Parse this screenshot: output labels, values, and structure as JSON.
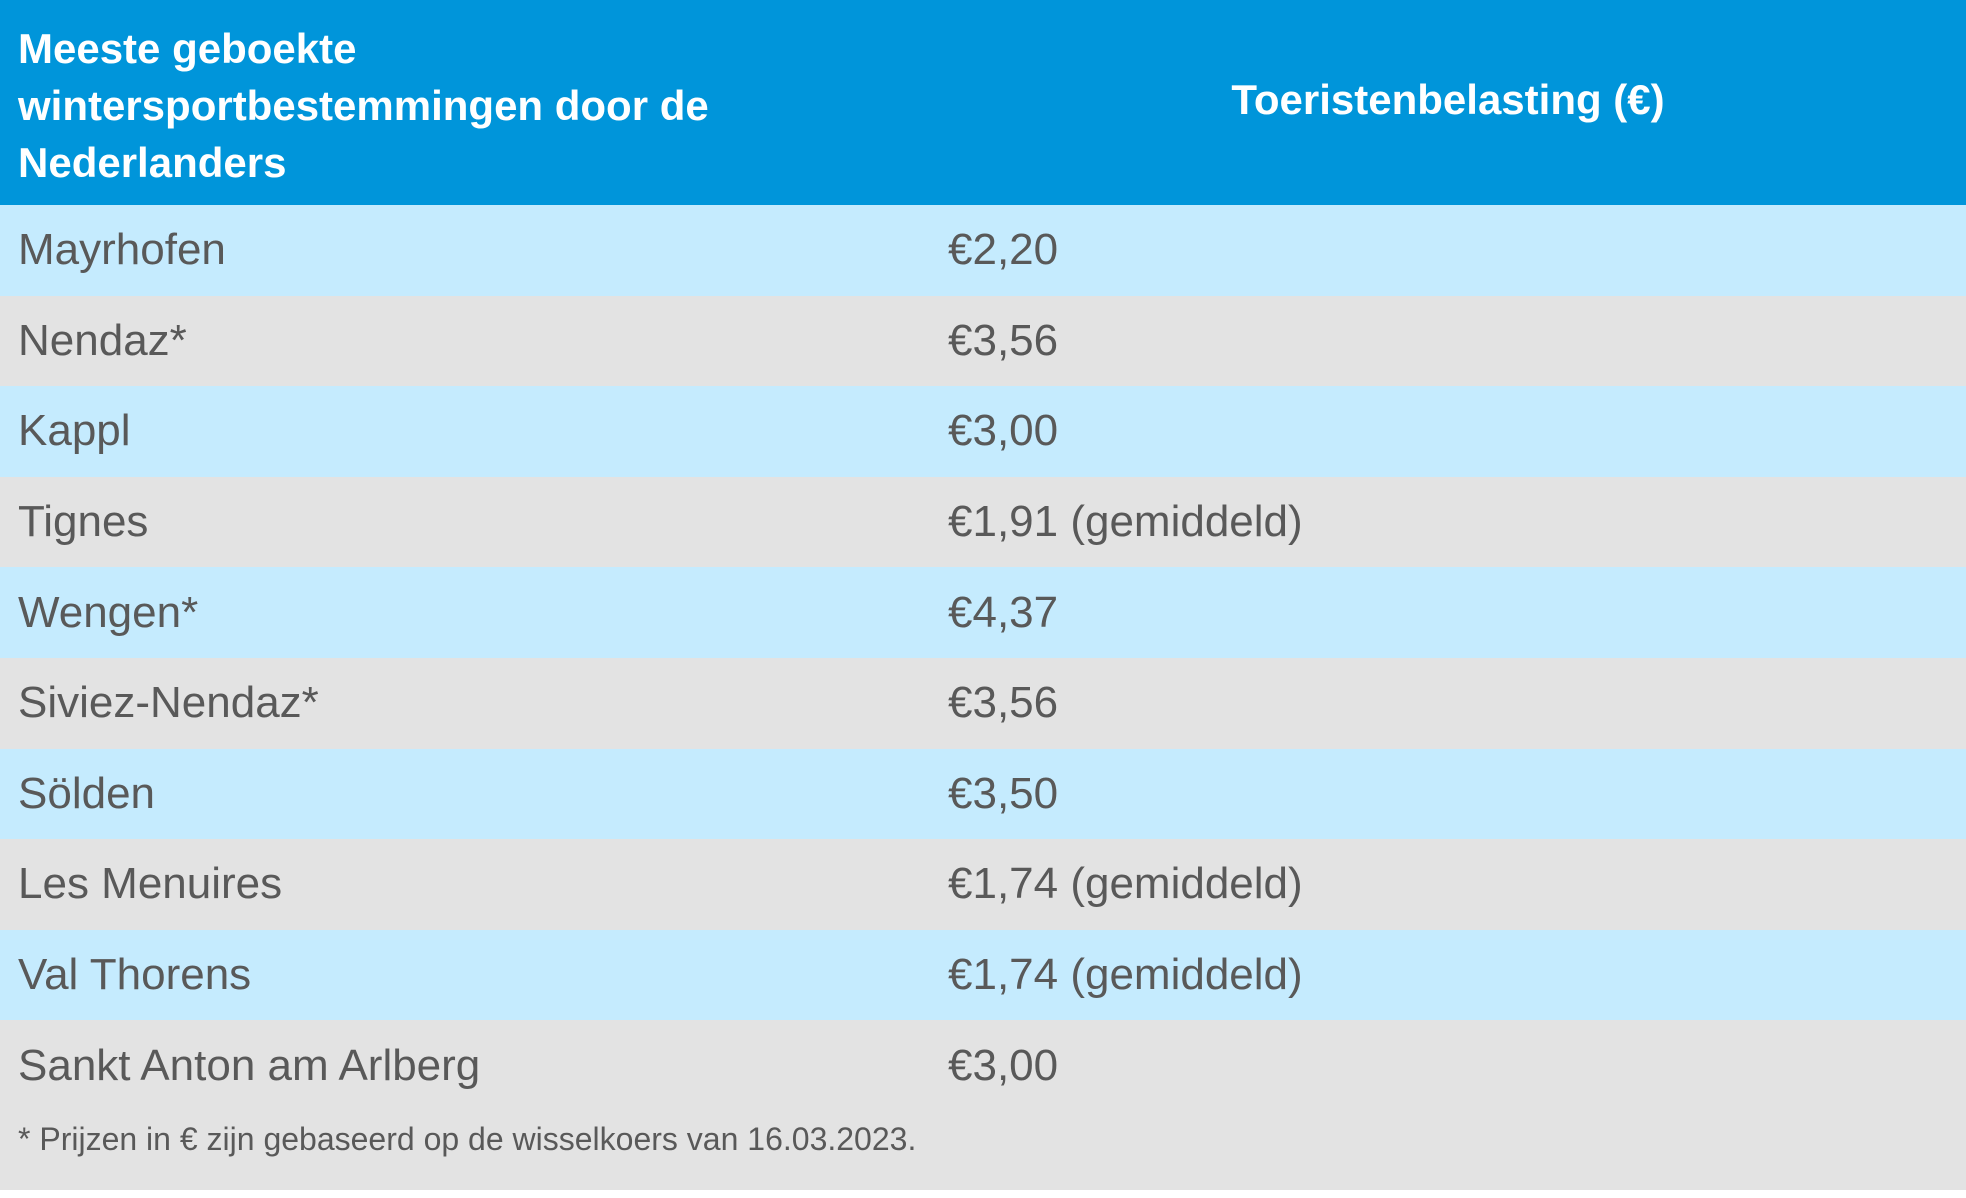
{
  "header": {
    "col1_line1": "Meeste geboekte",
    "col1_line2": "wintersportbestemmingen door de",
    "col1_line3": "Nederlanders",
    "col2": "Toeristenbelasting (€)"
  },
  "rows": [
    {
      "destination": "Mayrhofen",
      "tax": "€2,20"
    },
    {
      "destination": "Nendaz*",
      "tax": "€3,56"
    },
    {
      "destination": "Kappl",
      "tax": "€3,00"
    },
    {
      "destination": "Tignes",
      "tax": "€1,91 (gemiddeld)"
    },
    {
      "destination": "Wengen*",
      "tax": "€4,37"
    },
    {
      "destination": "Siviez-Nendaz*",
      "tax": "€3,56"
    },
    {
      "destination": "Sölden",
      "tax": "€3,50"
    },
    {
      "destination": "Les Menuires",
      "tax": "€1,74 (gemiddeld)"
    },
    {
      "destination": "Val Thorens",
      "tax": "€1,74 (gemiddeld)"
    },
    {
      "destination": "Sankt Anton am Arlberg",
      "tax": "€3,00"
    }
  ],
  "footnote": "* Prijzen in € zijn gebaseerd op de wisselkoers van 16.03.2023.",
  "colors": {
    "header_bg": "#0095da",
    "row_blue": "#c5ebfe",
    "row_gray": "#e3e3e3",
    "text": "#595959"
  }
}
